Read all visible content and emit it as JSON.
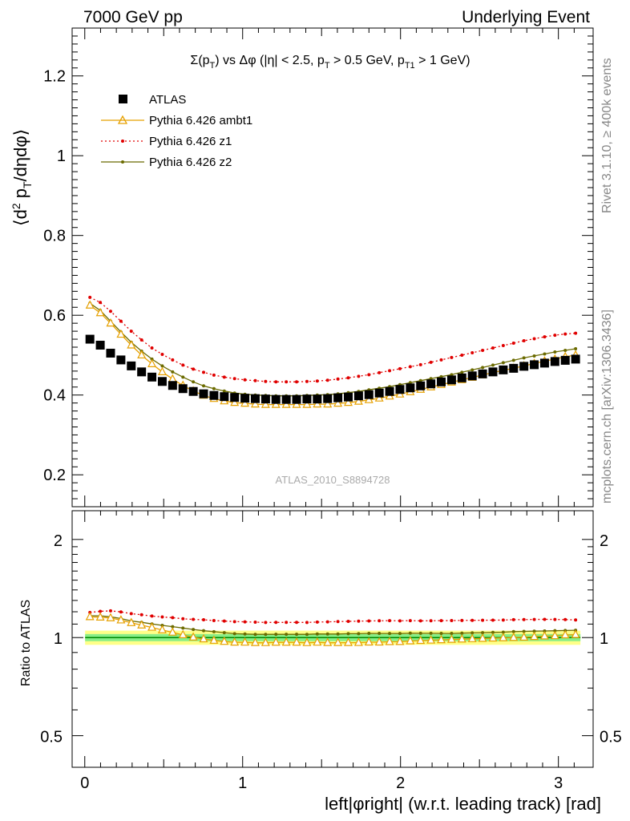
{
  "header": {
    "left": "7000 GeV pp",
    "right": "Underlying Event"
  },
  "side_text": {
    "rivet": "Rivet 3.1.10, ≥ 400k events",
    "mcplots": "mcplots.cern.ch [arXiv:1306.3436]"
  },
  "colors": {
    "data": "#000000",
    "ambt1": "#e6a000",
    "z1": "#e00000",
    "z2": "#6b6b00",
    "band_inner": "#88ee88",
    "band_outer": "#ffff88",
    "ratio_line": "#008800"
  },
  "chart_data": [
    {
      "type": "scatter",
      "panel": "main",
      "title": "Σ(pT) vs Δφ (|η| < 2.5, pT > 0.5 GeV, pT1 > 1 GeV)",
      "title_parts": {
        "a": "Σ(p",
        "a_sub": "T",
        "b": ") vs Δφ (|η| < 2.5, p",
        "b_sub": "T",
        "c": " > 0.5 GeV, p",
        "c_sub": "T1",
        "d": " > 1 GeV)"
      },
      "ylabel": "⟨d² pT/dηdφ⟩",
      "ylabel_parts": {
        "a": "⟨d",
        "sup": "2",
        "b": " p",
        "sub": "T",
        "c": "/dηdφ⟩"
      },
      "watermark": "ATLAS_2010_S8894728",
      "xlim": [
        -0.08,
        3.22
      ],
      "ylim": [
        0.12,
        1.32
      ],
      "yticks": [
        0.2,
        0.4,
        0.6,
        0.8,
        1.0,
        1.2
      ],
      "ytick_labels": [
        "0.2",
        "0.4",
        "0.6",
        "0.8",
        "1",
        "1.2"
      ],
      "legend_position": "top-left",
      "x": [
        0.0327,
        0.0982,
        0.1636,
        0.2291,
        0.2945,
        0.36,
        0.4254,
        0.4909,
        0.5563,
        0.6218,
        0.6872,
        0.7527,
        0.8181,
        0.8836,
        0.949,
        1.0145,
        1.0799,
        1.1454,
        1.2108,
        1.2763,
        1.3417,
        1.4072,
        1.4726,
        1.5381,
        1.6035,
        1.669,
        1.7344,
        1.7999,
        1.8653,
        1.9308,
        1.9962,
        2.0617,
        2.1271,
        2.1926,
        2.258,
        2.3235,
        2.3889,
        2.4544,
        2.5198,
        2.5853,
        2.6507,
        2.7162,
        2.7816,
        2.8471,
        2.9125,
        2.978,
        3.0434,
        3.1089
      ],
      "series": [
        {
          "name": "ATLAS",
          "key": "atlas",
          "marker": "square",
          "values": [
            0.54,
            0.525,
            0.505,
            0.488,
            0.473,
            0.458,
            0.445,
            0.434,
            0.424,
            0.416,
            0.409,
            0.403,
            0.399,
            0.396,
            0.394,
            0.392,
            0.391,
            0.39,
            0.389,
            0.389,
            0.389,
            0.39,
            0.39,
            0.391,
            0.393,
            0.395,
            0.398,
            0.401,
            0.405,
            0.409,
            0.414,
            0.418,
            0.423,
            0.428,
            0.433,
            0.438,
            0.443,
            0.448,
            0.453,
            0.458,
            0.463,
            0.467,
            0.472,
            0.476,
            0.48,
            0.484,
            0.487,
            0.49
          ]
        },
        {
          "name": "Pythia 6.426 ambt1",
          "key": "ambt1",
          "marker": "triangle",
          "values": [
            0.625,
            0.606,
            0.58,
            0.552,
            0.525,
            0.5,
            0.478,
            0.458,
            0.44,
            0.424,
            0.41,
            0.399,
            0.391,
            0.385,
            0.381,
            0.379,
            0.377,
            0.376,
            0.376,
            0.376,
            0.376,
            0.376,
            0.377,
            0.377,
            0.379,
            0.381,
            0.384,
            0.388,
            0.392,
            0.397,
            0.402,
            0.408,
            0.414,
            0.42,
            0.426,
            0.432,
            0.438,
            0.444,
            0.45,
            0.456,
            0.462,
            0.467,
            0.473,
            0.479,
            0.485,
            0.49,
            0.496,
            0.5
          ]
        },
        {
          "name": "Pythia 6.426 z1",
          "key": "z1",
          "marker": "dot",
          "values": [
            0.645,
            0.632,
            0.61,
            0.585,
            0.56,
            0.538,
            0.518,
            0.502,
            0.488,
            0.475,
            0.465,
            0.457,
            0.45,
            0.445,
            0.441,
            0.438,
            0.436,
            0.434,
            0.433,
            0.433,
            0.433,
            0.434,
            0.435,
            0.437,
            0.44,
            0.443,
            0.447,
            0.451,
            0.456,
            0.461,
            0.466,
            0.471,
            0.476,
            0.482,
            0.488,
            0.494,
            0.5,
            0.506,
            0.512,
            0.518,
            0.524,
            0.53,
            0.536,
            0.541,
            0.546,
            0.55,
            0.553,
            0.555
          ]
        },
        {
          "name": "Pythia 6.426 z2",
          "key": "z2",
          "marker": "dot",
          "values": [
            0.63,
            0.612,
            0.585,
            0.558,
            0.532,
            0.51,
            0.49,
            0.473,
            0.458,
            0.445,
            0.433,
            0.423,
            0.416,
            0.41,
            0.405,
            0.402,
            0.4,
            0.399,
            0.398,
            0.398,
            0.398,
            0.399,
            0.4,
            0.401,
            0.403,
            0.406,
            0.409,
            0.413,
            0.417,
            0.421,
            0.426,
            0.431,
            0.436,
            0.441,
            0.446,
            0.451,
            0.457,
            0.463,
            0.469,
            0.475,
            0.481,
            0.487,
            0.493,
            0.498,
            0.503,
            0.508,
            0.512,
            0.516
          ]
        }
      ]
    },
    {
      "type": "scatter",
      "panel": "ratio",
      "ylabel": "Ratio to ATLAS",
      "xlabel": "left|φright| (w.r.t. leading track) [rad]",
      "xlim": [
        -0.08,
        3.22
      ],
      "ylim": [
        0.4,
        2.45
      ],
      "ylog": true,
      "xticks": [
        0,
        1,
        2,
        3
      ],
      "xtick_labels": [
        "0",
        "1",
        "2",
        "3"
      ],
      "yticks": [
        0.5,
        1,
        2
      ],
      "ytick_labels": [
        "0.5",
        "1",
        "2"
      ],
      "band": {
        "inner": [
          0.975,
          1.025
        ],
        "outer": [
          0.95,
          1.05
        ]
      },
      "note": "ratios computed from the main-panel series"
    }
  ]
}
